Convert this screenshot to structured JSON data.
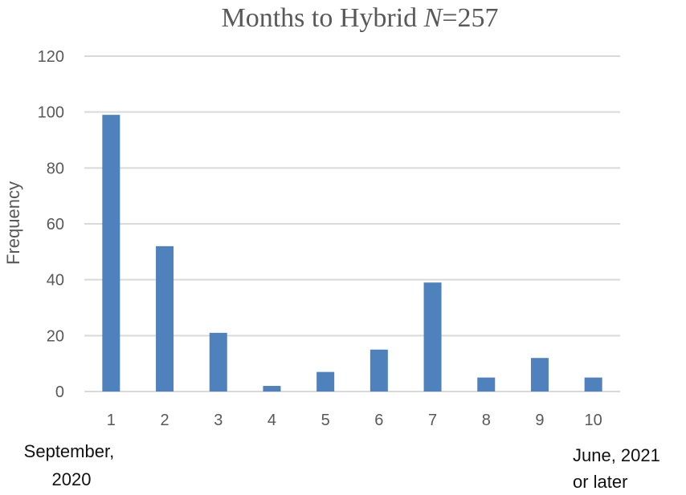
{
  "chart_data": {
    "type": "bar",
    "title_main": "Months to Hybrid ",
    "title_n": "N",
    "title_rest": "=257",
    "xlabel": "",
    "ylabel": "Frequency",
    "categories": [
      "1",
      "2",
      "3",
      "4",
      "5",
      "6",
      "7",
      "8",
      "9",
      "10"
    ],
    "values": [
      99,
      52,
      21,
      2,
      7,
      15,
      39,
      5,
      12,
      5
    ],
    "ylim": [
      0,
      120
    ],
    "yticks": [
      "0",
      "20",
      "40",
      "60",
      "80",
      "100",
      "120"
    ],
    "grid": true,
    "bar_color": "#4f81bd",
    "start_annotation": [
      "September,",
      "2020"
    ],
    "end_annotation": [
      "June, 2021",
      "or later"
    ]
  }
}
